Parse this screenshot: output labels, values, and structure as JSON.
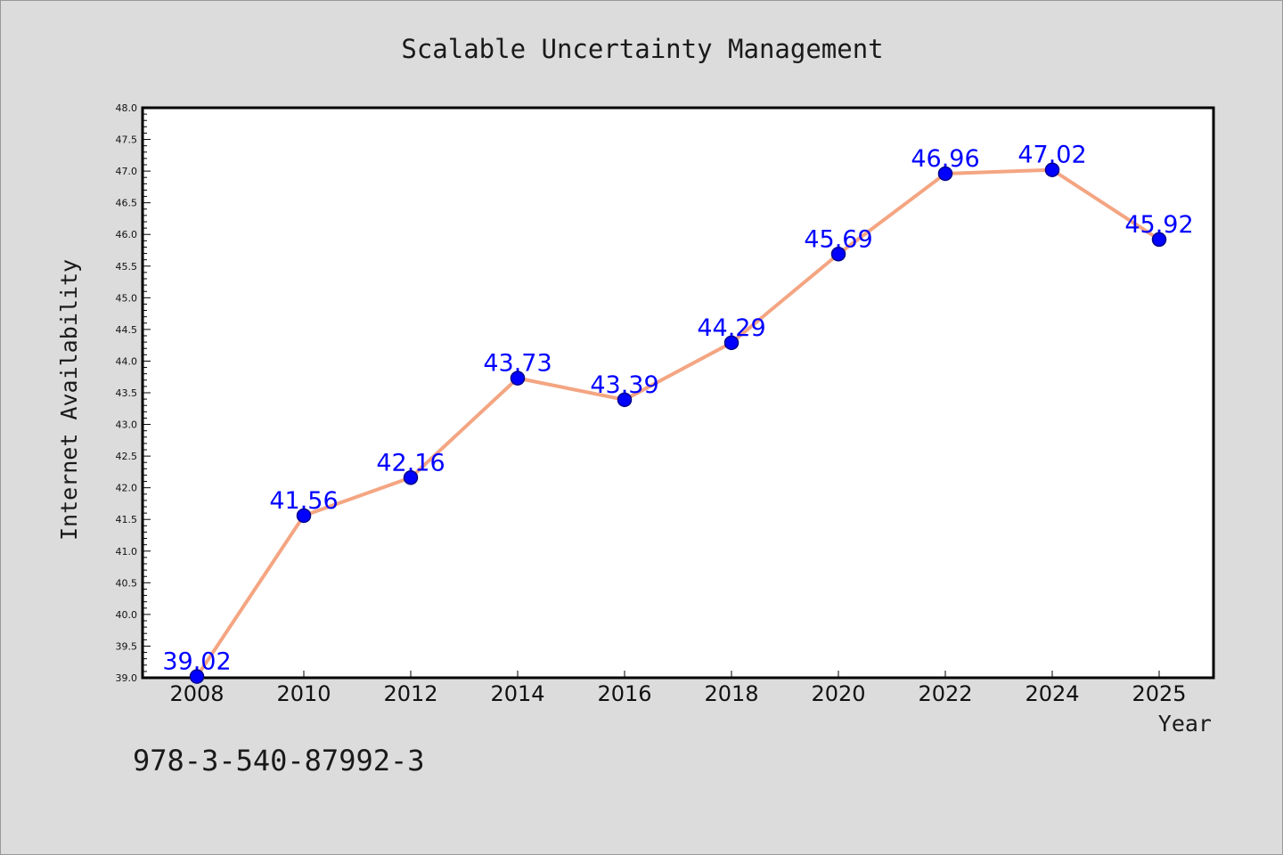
{
  "colors": {
    "background": "#dcdcdc",
    "plot_background": "#ffffff",
    "line": "#f4a582",
    "marker": "#0000ff",
    "marker_edge": "#00008b",
    "data_label": "#0000ff"
  },
  "footer": {
    "isbn": "978-3-540-87992-3"
  },
  "chart_data": {
    "type": "line",
    "title": "Scalable Uncertainty Management",
    "xlabel": "Year",
    "ylabel": "Internet Availability",
    "x": [
      2008,
      2010,
      2012,
      2014,
      2016,
      2018,
      2020,
      2022,
      2024,
      2025
    ],
    "x_tick_labels": [
      "2008",
      "2010",
      "2012",
      "2014",
      "2016",
      "2018",
      "2020",
      "2022",
      "2024",
      "2025"
    ],
    "series": [
      {
        "values": [
          39.02,
          41.56,
          42.16,
          43.73,
          43.39,
          44.29,
          45.69,
          46.96,
          47.02,
          45.92
        ],
        "data_labels": [
          "39.02",
          "41.56",
          "42.16",
          "43.73",
          "43.39",
          "44.29",
          "45.69",
          "46.96",
          "47.02",
          "45.92"
        ]
      }
    ],
    "ylim": [
      39.0,
      48.0
    ],
    "y_ticks": [
      39.0,
      39.5,
      40.0,
      40.5,
      41.0,
      41.5,
      42.0,
      42.5,
      43.0,
      43.5,
      44.0,
      44.5,
      45.0,
      45.5,
      46.0,
      46.5,
      47.0,
      47.5,
      48.0
    ],
    "y_tick_labels": [
      "39.0",
      "39.5",
      "40.0",
      "40.5",
      "41.0",
      "41.5",
      "42.0",
      "42.5",
      "43.0",
      "43.5",
      "44.0",
      "44.5",
      "45.0",
      "45.5",
      "46.0",
      "46.5",
      "47.0",
      "47.5",
      "48.0"
    ],
    "grid": false,
    "legend": "none"
  }
}
